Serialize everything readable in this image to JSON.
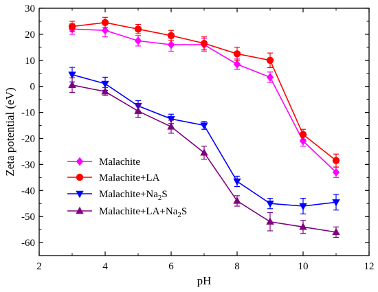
{
  "chart_data": {
    "type": "line",
    "xlabel": "pH",
    "ylabel": "Zeta potential (eV)",
    "xlim": [
      2,
      12
    ],
    "ylim": [
      -65,
      30
    ],
    "x_ticks": [
      2,
      4,
      6,
      8,
      10,
      12
    ],
    "y_ticks": [
      30,
      20,
      10,
      0,
      -10,
      -20,
      -30,
      -40,
      -50,
      -60
    ],
    "x_tick_labels": [
      "2",
      "4",
      "6",
      "8",
      "10",
      "12"
    ],
    "y_tick_labels": [
      "30",
      "20",
      "10",
      "0",
      "-10",
      "-20",
      "-30",
      "-40",
      "-50",
      "-60"
    ],
    "legend_position": "bottom-left",
    "x": [
      3,
      4,
      5,
      6,
      7,
      8,
      9,
      10,
      11
    ],
    "series": [
      {
        "name": "Malachite",
        "label_base": "Malachite",
        "label_sub": "",
        "label_tail": "",
        "color": "#ff00ff",
        "marker": "diamond",
        "values": [
          22.0,
          21.5,
          17.5,
          16.0,
          16.0,
          8.5,
          3.5,
          -21.0,
          -33.0
        ],
        "errors": [
          2.0,
          2.5,
          2.0,
          2.5,
          2.5,
          2.0,
          2.0,
          2.0,
          2.0
        ]
      },
      {
        "name": "Malachite+LA",
        "label_base": "Malachite+LA",
        "label_sub": "",
        "label_tail": "",
        "color": "#ff0000",
        "marker": "circle",
        "values": [
          23.0,
          24.5,
          22.0,
          19.5,
          16.5,
          12.5,
          10.0,
          -18.5,
          -28.5
        ],
        "errors": [
          2.0,
          2.0,
          1.8,
          2.0,
          2.5,
          2.5,
          2.8,
          2.0,
          2.5
        ]
      },
      {
        "name": "Malachite+Na2S",
        "label_base": "Malachite+Na",
        "label_sub": "2",
        "label_tail": "S",
        "color": "#0000ff",
        "marker": "triangle-down",
        "values": [
          4.5,
          1.0,
          -7.5,
          -12.5,
          -15.0,
          -36.5,
          -45.0,
          -46.0,
          -44.5
        ],
        "errors": [
          2.8,
          2.5,
          2.0,
          1.8,
          1.5,
          2.0,
          2.0,
          3.0,
          3.0
        ]
      },
      {
        "name": "Malachite+LA+Na2S",
        "label_base": "Malachite+LA+Na",
        "label_sub": "2",
        "label_tail": "S",
        "color": "#800080",
        "marker": "triangle-up",
        "values": [
          0.5,
          -2.0,
          -9.5,
          -15.5,
          -25.5,
          -44.0,
          -52.0,
          -54.0,
          -56.0
        ],
        "errors": [
          2.8,
          1.5,
          2.5,
          2.5,
          2.5,
          2.0,
          3.5,
          2.5,
          2.0
        ]
      }
    ]
  }
}
